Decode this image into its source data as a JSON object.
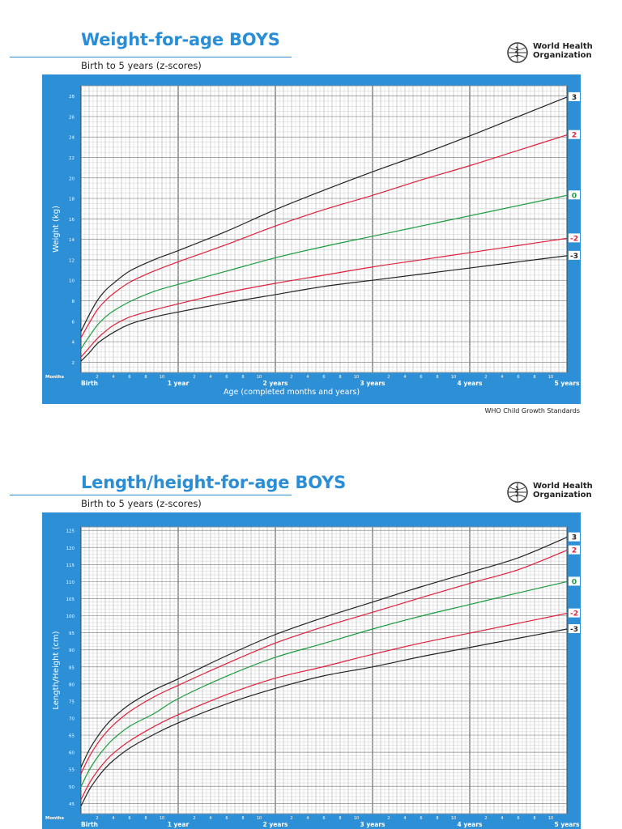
{
  "footer": {
    "source": "WHO Child Growth Standards"
  },
  "logo": {
    "line1": "World Health",
    "line2": "Organization"
  },
  "charts": [
    {
      "title": "Weight-for-age BOYS",
      "subtitle": "Birth to 5 years (z-scores)",
      "xlabel": "Age (completed months and years)",
      "ylabel": "Weight (kg)",
      "months_label": "Months",
      "year_labels": [
        "Birth",
        "1 year",
        "2 years",
        "3 years",
        "4 years",
        "5 years"
      ],
      "month_ticks": [
        "2",
        "4",
        "6",
        "8",
        "10"
      ],
      "y_ticks": [
        "2",
        "4",
        "6",
        "8",
        "10",
        "12",
        "14",
        "16",
        "18",
        "20",
        "22",
        "24",
        "26",
        "28"
      ]
    },
    {
      "title": "Length/height-for-age BOYS",
      "subtitle": "Birth to 5 years (z-scores)",
      "xlabel": "",
      "ylabel": "Length/Height (cm)",
      "months_label": "Months",
      "year_labels": [
        "Birth",
        "1 year",
        "2 years",
        "3 years",
        "4 years",
        "5 years"
      ],
      "month_ticks": [
        "2",
        "4",
        "6",
        "8",
        "10"
      ],
      "y_ticks": [
        "45",
        "50",
        "55",
        "60",
        "65",
        "70",
        "75",
        "80",
        "85",
        "90",
        "95",
        "100",
        "105",
        "110",
        "115",
        "120",
        "125"
      ]
    }
  ],
  "chart_data": [
    {
      "type": "line",
      "title": "Weight-for-age BOYS",
      "subtitle": "Birth to 5 years (z-scores)",
      "xlabel": "Age (completed months and years)",
      "ylabel": "Weight (kg)",
      "xlim": [
        0,
        60
      ],
      "ylim": [
        1,
        29
      ],
      "grid": true,
      "x": [
        0,
        1,
        2,
        3,
        4,
        6,
        9,
        12,
        18,
        24,
        30,
        36,
        42,
        48,
        54,
        60
      ],
      "series": [
        {
          "name": "3",
          "color": "#222222",
          "values": [
            5.0,
            6.6,
            8.0,
            9.0,
            9.7,
            10.9,
            12.0,
            12.9,
            14.8,
            16.9,
            18.8,
            20.6,
            22.3,
            24.1,
            26.0,
            27.9
          ]
        },
        {
          "name": "2",
          "color": "#e0203c",
          "values": [
            4.4,
            5.8,
            7.1,
            8.0,
            8.7,
            9.8,
            10.9,
            11.8,
            13.5,
            15.3,
            16.9,
            18.3,
            19.8,
            21.2,
            22.7,
            24.2
          ]
        },
        {
          "name": "0",
          "color": "#1a9c3e",
          "values": [
            3.3,
            4.5,
            5.6,
            6.4,
            7.0,
            7.9,
            8.9,
            9.6,
            10.9,
            12.2,
            13.3,
            14.3,
            15.3,
            16.3,
            17.3,
            18.3
          ]
        },
        {
          "name": "-2",
          "color": "#e0203c",
          "values": [
            2.5,
            3.4,
            4.3,
            5.0,
            5.6,
            6.4,
            7.1,
            7.7,
            8.8,
            9.7,
            10.5,
            11.3,
            12.0,
            12.7,
            13.4,
            14.1
          ]
        },
        {
          "name": "-3",
          "color": "#222222",
          "values": [
            2.1,
            2.9,
            3.8,
            4.4,
            4.9,
            5.7,
            6.4,
            6.9,
            7.8,
            8.6,
            9.4,
            10.0,
            10.6,
            11.2,
            11.8,
            12.4
          ]
        }
      ]
    },
    {
      "type": "line",
      "title": "Length/height-for-age BOYS",
      "subtitle": "Birth to 5 years (z-scores)",
      "xlabel": "",
      "ylabel": "Length/Height (cm)",
      "xlim": [
        0,
        60
      ],
      "ylim": [
        42,
        126
      ],
      "grid": true,
      "x": [
        0,
        1,
        2,
        3,
        4,
        6,
        9,
        12,
        18,
        24,
        30,
        36,
        42,
        48,
        54,
        60
      ],
      "series": [
        {
          "name": "3",
          "color": "#222222",
          "values": [
            55.6,
            60.6,
            64.4,
            67.6,
            70.1,
            74.0,
            78.2,
            81.5,
            88.3,
            94.5,
            99.5,
            104.0,
            108.5,
            112.7,
            117.0,
            123.0
          ]
        },
        {
          "name": "2",
          "color": "#e0203c",
          "values": [
            53.7,
            58.6,
            62.4,
            65.5,
            68.0,
            71.9,
            76.2,
            79.6,
            86.0,
            92.0,
            96.8,
            101.0,
            105.3,
            109.5,
            113.5,
            119.2
          ]
        },
        {
          "name": "0",
          "color": "#1a9c3e",
          "values": [
            49.9,
            54.7,
            58.4,
            61.4,
            63.9,
            67.6,
            71.3,
            75.7,
            82.3,
            87.8,
            91.9,
            96.1,
            99.9,
            103.3,
            106.7,
            110.0
          ]
        },
        {
          "name": "-2",
          "color": "#e0203c",
          "values": [
            46.1,
            50.8,
            54.4,
            57.3,
            59.7,
            63.3,
            67.5,
            71.0,
            76.9,
            81.7,
            85.1,
            88.7,
            92.0,
            94.9,
            97.8,
            100.7
          ]
        },
        {
          "name": "-3",
          "color": "#222222",
          "values": [
            44.2,
            48.9,
            52.4,
            55.3,
            57.6,
            61.2,
            65.2,
            68.6,
            74.2,
            78.7,
            82.4,
            85.0,
            88.0,
            90.7,
            93.4,
            96.1
          ]
        }
      ]
    }
  ]
}
